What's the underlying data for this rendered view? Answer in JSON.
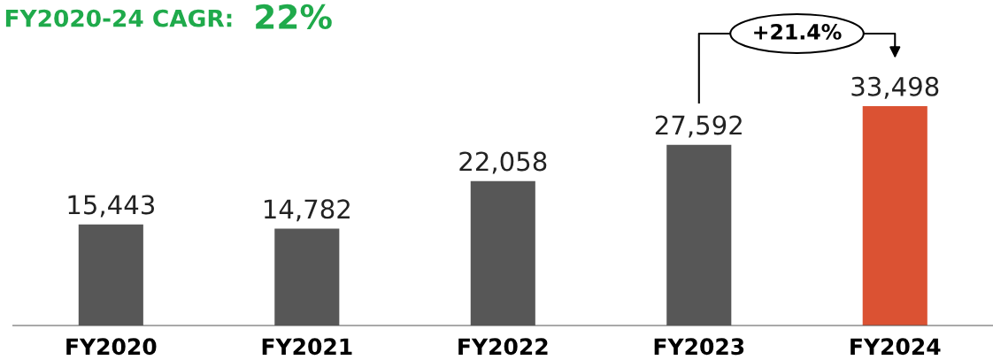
{
  "chart_data": {
    "type": "bar",
    "title": "FY2020-24 CAGR:",
    "subtitle": "22%",
    "categories": [
      "FY2020",
      "FY2021",
      "FY2022",
      "FY2023",
      "FY2024"
    ],
    "values": [
      15443,
      14782,
      22058,
      27592,
      33498
    ],
    "colors": [
      "#575757",
      "#575757",
      "#575757",
      "#575757",
      "#db5233"
    ],
    "value_labels": [
      "15,443",
      "14,782",
      "22,058",
      "27,592",
      "33,498"
    ],
    "grid": false,
    "legend": false,
    "annotations": [
      "+21.4%"
    ]
  }
}
